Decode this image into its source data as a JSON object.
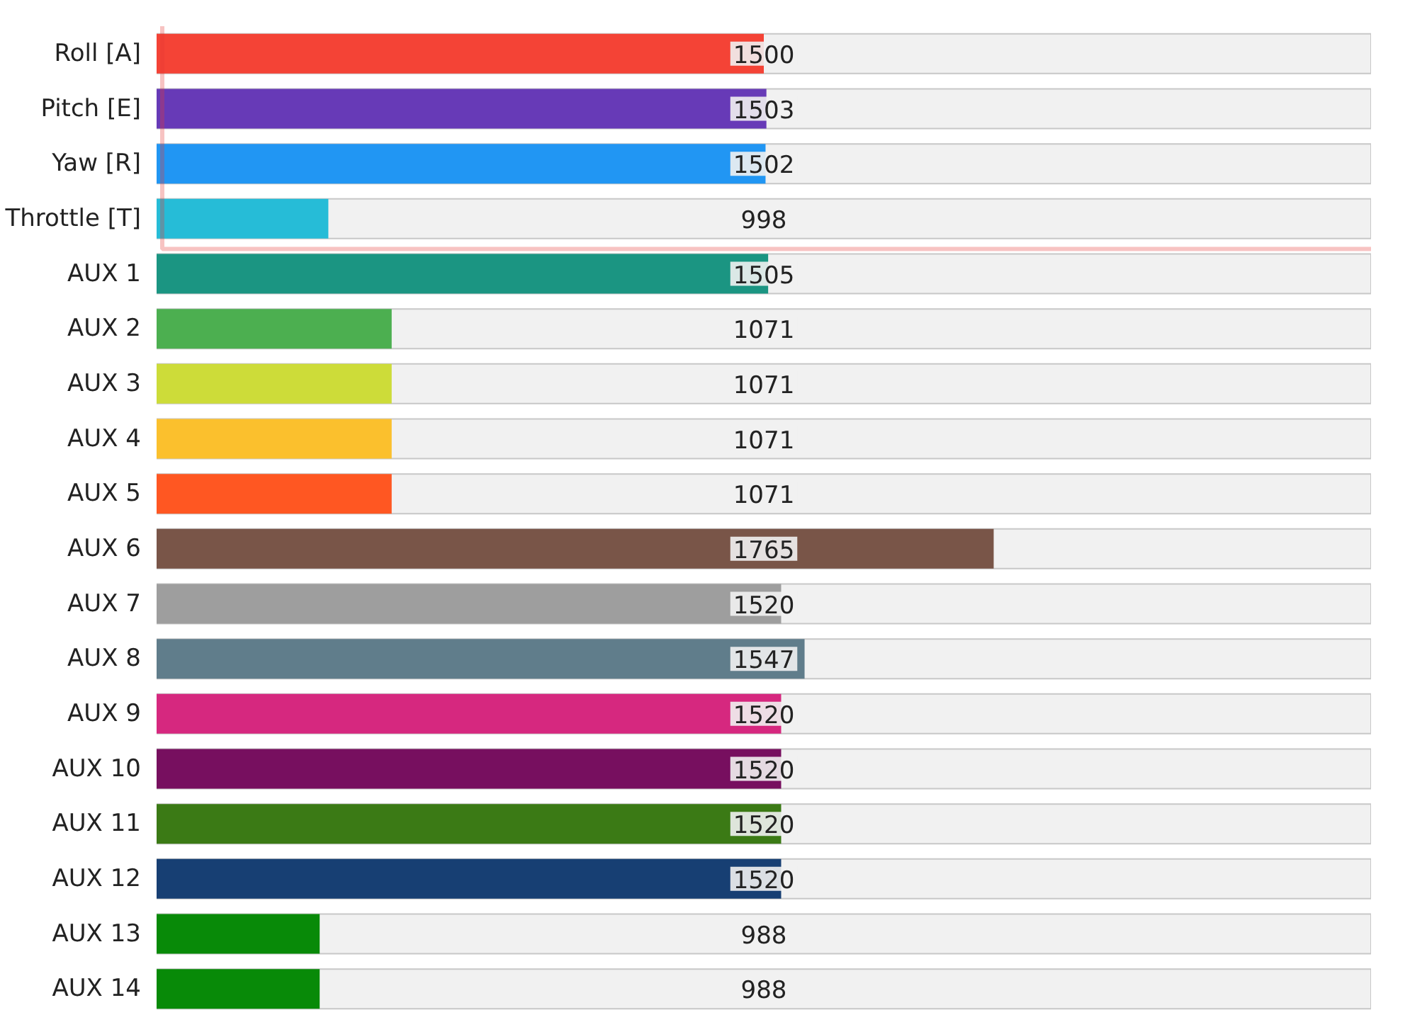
{
  "chart_data": {
    "type": "bar",
    "orientation": "horizontal",
    "categories": [
      "Roll [A]",
      "Pitch [E]",
      "Yaw [R]",
      "Throttle [T]",
      "AUX 1",
      "AUX 2",
      "AUX 3",
      "AUX 4",
      "AUX 5",
      "AUX 6",
      "AUX 7",
      "AUX 8",
      "AUX 9",
      "AUX 10",
      "AUX 11",
      "AUX 12",
      "AUX 13",
      "AUX 14"
    ],
    "values": [
      1500,
      1503,
      1502,
      998,
      1505,
      1071,
      1071,
      1071,
      1071,
      1765,
      1520,
      1547,
      1520,
      1520,
      1520,
      1520,
      988,
      988
    ],
    "colors": [
      "#f44336",
      "#673ab7",
      "#2196f3",
      "#26bcd7",
      "#1b9582",
      "#4caf50",
      "#cddc39",
      "#fbc02d",
      "#ff5722",
      "#795548",
      "#9e9e9e",
      "#607d8b",
      "#d6287f",
      "#770f5f",
      "#3b7a15",
      "#173f73",
      "#088a08",
      "#088a08"
    ],
    "xlim": [
      800,
      2200
    ],
    "data_labels": true,
    "grid": false
  }
}
